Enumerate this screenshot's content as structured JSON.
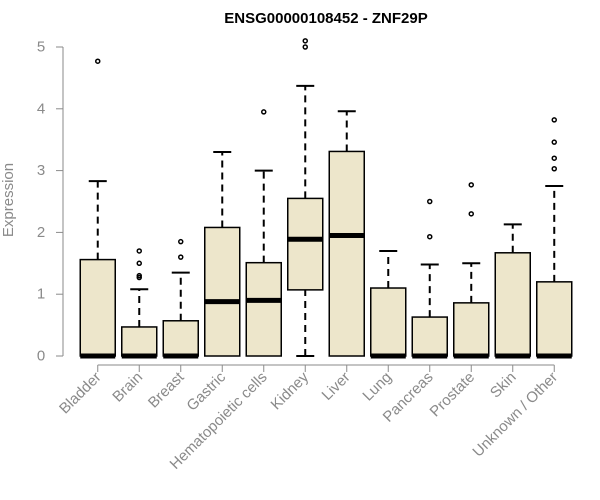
{
  "chart_data": {
    "type": "box",
    "title": "ENSG00000108452 - ZNF29P",
    "ylabel": "Expression",
    "xlabel": "",
    "ylim": [
      0,
      5
    ],
    "yticks": [
      0,
      1,
      2,
      3,
      4,
      5
    ],
    "categories": [
      "Bladder",
      "Brain",
      "Breast",
      "Gastric",
      "Hematopoietic cells",
      "Kidney",
      "Liver",
      "Lung",
      "Pancreas",
      "Prostate",
      "Skin",
      "Unknown / Other"
    ],
    "boxes": [
      {
        "category": "Bladder",
        "min": 0,
        "q1": 0,
        "median": 0,
        "q3": 1.56,
        "max": 2.83,
        "outliers": [
          4.77
        ]
      },
      {
        "category": "Brain",
        "min": 0,
        "q1": 0,
        "median": 0,
        "q3": 0.47,
        "max": 1.08,
        "outliers": [
          1.27,
          1.3,
          1.5,
          1.7
        ]
      },
      {
        "category": "Breast",
        "min": 0,
        "q1": 0,
        "median": 0,
        "q3": 0.57,
        "max": 1.35,
        "outliers": [
          1.6,
          1.85
        ]
      },
      {
        "category": "Gastric",
        "min": 0,
        "q1": 0,
        "median": 0.88,
        "q3": 2.08,
        "max": 3.3,
        "outliers": []
      },
      {
        "category": "Hematopoietic cells",
        "min": 0,
        "q1": 0,
        "median": 0.9,
        "q3": 1.51,
        "max": 3.0,
        "outliers": [
          3.95
        ]
      },
      {
        "category": "Kidney",
        "min": 0,
        "q1": 1.07,
        "median": 1.89,
        "q3": 2.55,
        "max": 4.37,
        "outliers": [
          5.0,
          5.1
        ]
      },
      {
        "category": "Liver",
        "min": 0,
        "q1": 0,
        "median": 1.95,
        "q3": 3.31,
        "max": 3.96,
        "outliers": []
      },
      {
        "category": "Lung",
        "min": 0,
        "q1": 0,
        "median": 0,
        "q3": 1.1,
        "max": 1.7,
        "outliers": []
      },
      {
        "category": "Pancreas",
        "min": 0,
        "q1": 0,
        "median": 0,
        "q3": 0.63,
        "max": 1.48,
        "outliers": [
          1.93,
          2.5
        ]
      },
      {
        "category": "Prostate",
        "min": 0,
        "q1": 0,
        "median": 0,
        "q3": 0.86,
        "max": 1.5,
        "outliers": [
          2.3,
          2.77
        ]
      },
      {
        "category": "Skin",
        "min": 0,
        "q1": 0,
        "median": 0,
        "q3": 1.67,
        "max": 2.13,
        "outliers": []
      },
      {
        "category": "Unknown / Other",
        "min": 0,
        "q1": 0,
        "median": 0,
        "q3": 1.2,
        "max": 2.75,
        "outliers": [
          3.03,
          3.2,
          3.46,
          3.82
        ]
      }
    ],
    "colors": {
      "box_fill": "#ede6cb",
      "box_stroke": "#000000",
      "axis": "#8a8a8a",
      "title": "#000000"
    },
    "grid": false,
    "legend": "none"
  }
}
